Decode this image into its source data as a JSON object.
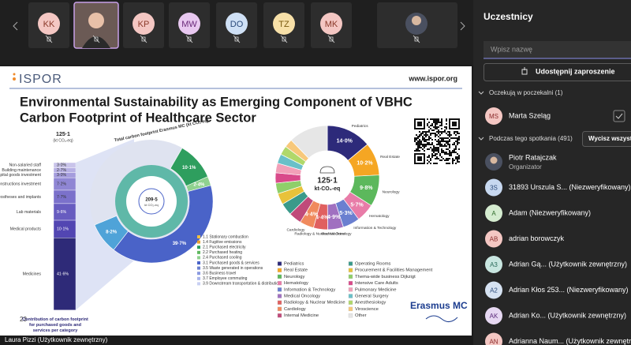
{
  "tiles": [
    "KK",
    "KP",
    "MW",
    "DO",
    "TZ",
    "MK"
  ],
  "presenter": "Laura Pizzi (Użytkownik zewnętrzny)",
  "panel": {
    "title": "Uczestnicy",
    "search_placeholder": "Wpisz nazwę",
    "share_button": "Udostępnij zaproszenie",
    "lobby_heading": "Oczekują w poczekalni (1)",
    "lobby": [
      {
        "initials": "MS",
        "name": "Marta Szeląg"
      }
    ],
    "meeting_heading": "Podczas tego spotkania (491)",
    "mute_button": "Wycisz wszystkich",
    "participants": [
      {
        "name": "Piotr Ratajczak",
        "role": "Organizator"
      },
      {
        "initials": "3S",
        "name": "31893 Urszula S... (Niezweryfikowany)"
      },
      {
        "initials": "A",
        "name": "Adam (Niezweryfikowany)"
      },
      {
        "initials": "AB",
        "name": "adrian borowczyk"
      },
      {
        "initials": "A3",
        "name": "Adrian Gą... (Użytkownik zewnętrzny)"
      },
      {
        "initials": "A2",
        "name": "Adrian Kłos 253... (Niezweryfikowany)"
      },
      {
        "initials": "AK",
        "name": "Adrian Ko... (Użytkownik zewnętrzny)"
      },
      {
        "initials": "AN",
        "name": "Adrianna Naum... (Użytkownik zewnętrzny)"
      }
    ]
  },
  "slide": {
    "logo": "ISPOR",
    "url": "www.ispor.org",
    "title": [
      "Environmental Sustainability as Emerging Component of VBHC",
      "Carbon Footprint of Healthcare Sector"
    ],
    "page_number": "23",
    "brand": "Erasmus MC",
    "purchases": {
      "total": "125·1",
      "unit": "(kt CO₂-eq)",
      "caption": [
        "Contribution of carbon footprint",
        "for purchased goods and",
        "services per category"
      ],
      "items": [
        {
          "name": "Non-salaried staff",
          "value": 3.0,
          "label": "3·0%",
          "color": "#c9c4ea"
        },
        {
          "name": "Building maintenance",
          "value": 2.7,
          "label": "2·7%",
          "color": "#b7b0e4"
        },
        {
          "name": "Capital goods investment",
          "value": 3.0,
          "label": "3·0%",
          "color": "#a49cdd"
        },
        {
          "name": "Constructions investment",
          "value": 7.2,
          "label": "7·2%",
          "color": "#8f86d4"
        },
        {
          "name": "Prostheses and implants",
          "value": 7.7,
          "label": "7·7%",
          "color": "#7b71cb"
        },
        {
          "name": "Lab materials",
          "value": 9.6,
          "label": "9·6%",
          "color": "#675cc0"
        },
        {
          "name": "Medical products",
          "value": 10.1,
          "label": "10·1%",
          "color": "#5246b2"
        },
        {
          "name": "Medicines",
          "value": 41.6,
          "label": "41·6%",
          "color": "#2e2a78"
        }
      ]
    },
    "sunburst": {
      "title": "Total carbon footprint Erasmus MC (kt CO₂-eq)",
      "total": "209·5",
      "unit": "kt CO₂-eq",
      "segments": [
        {
          "value": 10.1,
          "label": "10·1%",
          "color": "#2e9e5e"
        },
        {
          "value": 2.4,
          "label": "2·4%",
          "color": "#8fd18f"
        },
        {
          "value": 39.7,
          "label": "39·7%",
          "color": "#4a63c8"
        },
        {
          "value": 8.2,
          "label": "8·2%",
          "color": "#4fa3d8"
        }
      ],
      "legend": [
        "1.1 Stationary combustion",
        "1.4 Fugitive emissions",
        "2.1 Purchased electricity",
        "2.2 Purchased heating",
        "2.4 Purchased cooling",
        "3.1 Purchased goods & services",
        "3.5 Waste generated in operations",
        "3.6 Business travel",
        "3.7 Employee commuting",
        "3.9 Downstream transportation & distribution"
      ]
    },
    "donut": {
      "total": "125·1",
      "unit": "kt-CO₂-eq",
      "segments": [
        {
          "name": "Pediatrics",
          "value": 14.0,
          "label": "14·0%",
          "color": "#2d2a7a"
        },
        {
          "name": "Real Estate",
          "value": 10.2,
          "label": "10·2%",
          "color": "#f5a623"
        },
        {
          "name": "Neurology",
          "value": 9.8,
          "label": "9·8%",
          "color": "#5cb85c"
        },
        {
          "name": "Hematology",
          "value": 5.7,
          "label": "5·7%",
          "color": "#e87ca8"
        },
        {
          "name": "Information & Technology",
          "value": 5.3,
          "label": "5·3%",
          "color": "#6a7fd0"
        },
        {
          "name": "Medical Oncology",
          "value": 4.9,
          "label": "4·9%",
          "color": "#a070c0"
        },
        {
          "name": "Radiology & Nuclear Medicine",
          "value": 4.4,
          "label": "4·4%",
          "color": "#e06060"
        },
        {
          "name": "Cardiology",
          "value": 4.4,
          "label": "4·4%",
          "color": "#f08a5d"
        },
        {
          "name": "Internal Medicine",
          "value": 4.0,
          "color": "#c04a7a"
        },
        {
          "name": "Operating Rooms",
          "value": 3.8,
          "color": "#3a9a8a"
        },
        {
          "name": "Procurement & Facilities Management",
          "value": 3.5,
          "color": "#e8c23a"
        },
        {
          "name": "Thema-wide business Dijkzigt",
          "value": 3.3,
          "color": "#8fcf6a"
        },
        {
          "name": "Intensive Care Adults",
          "value": 3.2,
          "color": "#d94a8a"
        },
        {
          "name": "Pulmonary Medicine",
          "value": 3.0,
          "color": "#f2a0b8"
        },
        {
          "name": "General Surgery",
          "value": 2.9,
          "color": "#6ac0c8"
        },
        {
          "name": "Anesthesiology",
          "value": 2.8,
          "color": "#b0d86a"
        },
        {
          "name": "Viroscience",
          "value": 2.6,
          "color": "#f7c87a"
        },
        {
          "name": "Other",
          "value": 12.2,
          "color": "#e6e6e6"
        }
      ]
    }
  }
}
